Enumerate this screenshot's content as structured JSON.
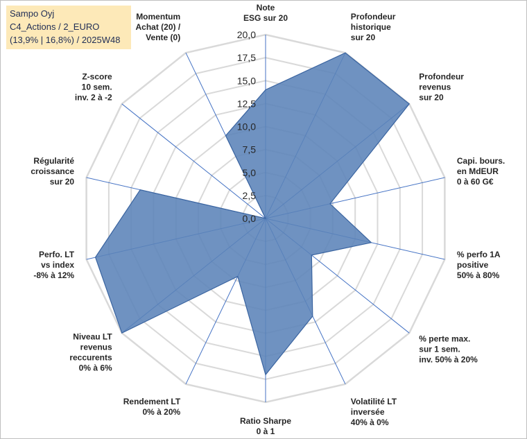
{
  "info": {
    "line1": "Sampo Oyj",
    "line2": "C4_Actions / 2_EURO",
    "line3": "(13,9% | 16,8%) / 2025W48"
  },
  "chart_data": {
    "type": "radar",
    "title": "Sampo Oyj",
    "rlim": [
      0,
      20
    ],
    "ticks": [
      "0,0",
      "2,5",
      "5,0",
      "7,5",
      "10,0",
      "12,5",
      "15,0",
      "17,5",
      "20,0"
    ],
    "colors": {
      "fill": "#5b83b8",
      "stroke": "#3a64a0",
      "grid": "#d9d9d9",
      "spoke": "#4472c4"
    },
    "axes": [
      {
        "label": [
          "Note",
          "ESG sur 20"
        ],
        "value": 14.0
      },
      {
        "label": [
          "Profondeur",
          "historique",
          "sur 20"
        ],
        "value": 20.0
      },
      {
        "label": [
          "Profondeur",
          "revenus",
          "sur 20"
        ],
        "value": 20.0
      },
      {
        "label": [
          "Capi. bours.",
          "en MdEUR",
          "0 à 60 G€"
        ],
        "value": 7.2
      },
      {
        "label": [
          "% perfo 1A",
          "positive",
          "50% à 80%"
        ],
        "value": 11.8
      },
      {
        "label": [
          "% perte max.",
          "sur 1 sem.",
          "inv. 50% à 20%"
        ],
        "value": 6.4
      },
      {
        "label": [
          "Volatilité LT",
          "inversée",
          "40% à 0%"
        ],
        "value": 11.8
      },
      {
        "label": [
          "Ratio Sharpe",
          "0 à 1"
        ],
        "value": 17.0
      },
      {
        "label": [
          "Rendement LT",
          "0% à 20%"
        ],
        "value": 7.0
      },
      {
        "label": [
          "Niveau LT",
          "revenus",
          "reccurents",
          "0% à 6%"
        ],
        "value": 20.0
      },
      {
        "label": [
          "Perfo. LT",
          "vs index",
          "-8% à 12%"
        ],
        "value": 19.0
      },
      {
        "label": [
          "Régularité",
          "croissance",
          "sur 20"
        ],
        "value": 14.0
      },
      {
        "label": [
          "Z-score",
          "10 sem.",
          "inv. 2 à -2"
        ],
        "value": 0.0
      },
      {
        "label": [
          "Momentum",
          "Achat (20) /",
          "Vente (0)"
        ],
        "value": 10.0
      }
    ]
  }
}
